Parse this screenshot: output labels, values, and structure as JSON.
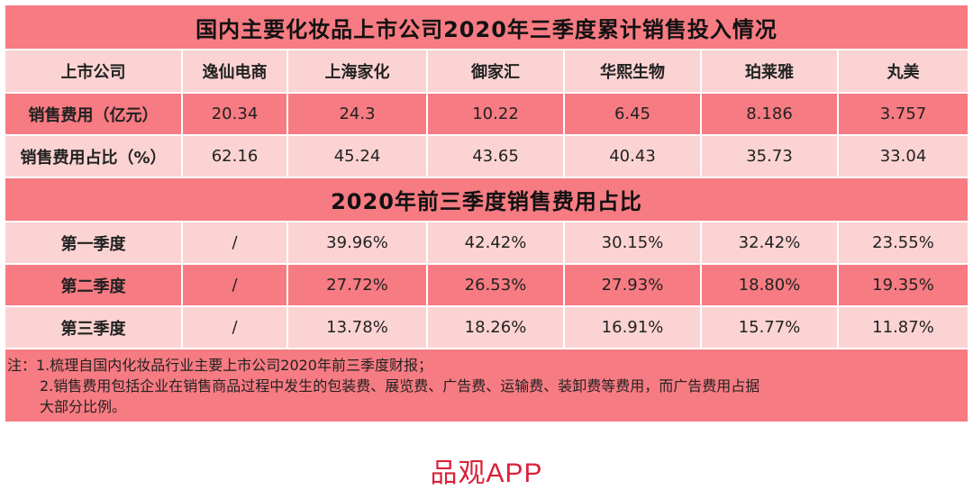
{
  "title": "国内主要化妆品上市公司2020年三季度累计销售投入情况",
  "header": {
    "label": "上市公司",
    "companies": [
      "逸仙电商",
      "上海家化",
      "御家汇",
      "华熙生物",
      "珀莱雅",
      "丸美"
    ]
  },
  "rows": [
    {
      "label": "销售费用（亿元）",
      "values": [
        "20.34",
        "24.3",
        "10.22",
        "6.45",
        "8.186",
        "3.757"
      ]
    },
    {
      "label": "销售费用占比（%）",
      "values": [
        "62.16",
        "45.24",
        "43.65",
        "40.43",
        "35.73",
        "33.04"
      ]
    }
  ],
  "subtitle": "2020年前三季度销售费用占比",
  "quarters": [
    {
      "label": "第一季度",
      "values": [
        "/",
        "39.96%",
        "42.42%",
        "30.15%",
        "32.42%",
        "23.55%"
      ]
    },
    {
      "label": "第二季度",
      "values": [
        "/",
        "27.72%",
        "26.53%",
        "27.93%",
        "18.80%",
        "19.35%"
      ]
    },
    {
      "label": "第三季度",
      "values": [
        "/",
        "13.78%",
        "18.26%",
        "16.91%",
        "15.77%",
        "11.87%"
      ]
    }
  ],
  "note": {
    "line1": "注：1.梳理自国内化妆品行业主要上市公司2020年前三季度财报；",
    "line2": "2.销售费用包括企业在销售商品过程中发生的包装费、展览费、广告费、运输费、装卸费等费用，而广告费用占据",
    "line3": "大部分比例。"
  },
  "brand": "品观APP",
  "colors": {
    "light": "#fcd3d3",
    "dark": "#f77b82",
    "brand": "#d8223b"
  }
}
